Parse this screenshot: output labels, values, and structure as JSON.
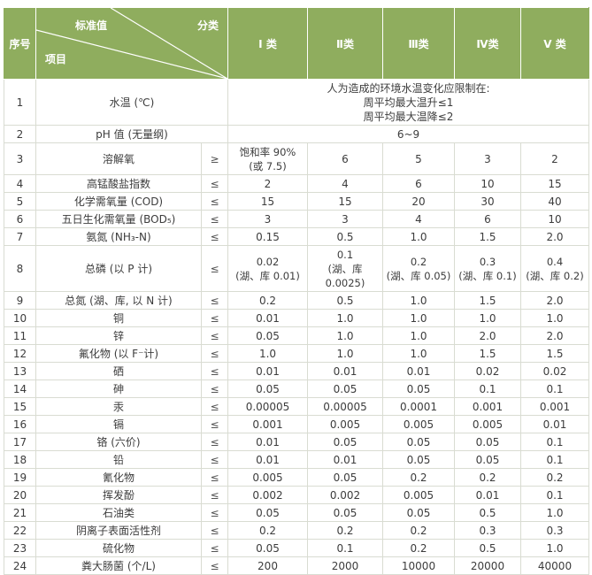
{
  "table": {
    "title_semantic": "地表水环境质量标准基本项目标准限值",
    "header": {
      "serial": "序号",
      "diagonal": {
        "top_left": "标准值",
        "top_right": "分类",
        "bottom_left": "项目"
      },
      "classes": [
        "I 类",
        "Ⅱ类",
        "Ⅲ类",
        "Ⅳ类",
        "V 类"
      ]
    },
    "rows": [
      {
        "no": "1",
        "item": "水温 (℃)",
        "span": "人为造成的环境水温变化应限制在:\n周平均最大温升≤1\n周平均最大温降≤2"
      },
      {
        "no": "2",
        "item": "pH 值 (无量纲)",
        "span": "6~9"
      },
      {
        "no": "3",
        "item": "溶解氧",
        "op": "≥",
        "values": [
          "饱和率 90%\n(或 7.5)",
          "6",
          "5",
          "3",
          "2"
        ]
      },
      {
        "no": "4",
        "item": "高锰酸盐指数",
        "op": "≤",
        "values": [
          "2",
          "4",
          "6",
          "10",
          "15"
        ]
      },
      {
        "no": "5",
        "item": "化学需氧量 (COD)",
        "op": "≤",
        "values": [
          "15",
          "15",
          "20",
          "30",
          "40"
        ]
      },
      {
        "no": "6",
        "item": "五日生化需氧量 (BOD₅)",
        "op": "≤",
        "values": [
          "3",
          "3",
          "4",
          "6",
          "10"
        ]
      },
      {
        "no": "7",
        "item": "氨氮 (NH₃-N)",
        "op": "≤",
        "values": [
          "0.15",
          "0.5",
          "1.0",
          "1.5",
          "2.0"
        ]
      },
      {
        "no": "8",
        "item": "总磷 (以 P 计)",
        "op": "≤",
        "values": [
          "0.02\n(湖、库 0.01)",
          "0.1\n(湖、库 0.0025)",
          "0.2\n(湖、库 0.05)",
          "0.3\n(湖、库 0.1)",
          "0.4\n(湖、库 0.2)"
        ]
      },
      {
        "no": "9",
        "item": "总氮 (湖、库, 以 N 计)",
        "op": "≤",
        "values": [
          "0.2",
          "0.5",
          "1.0",
          "1.5",
          "2.0"
        ]
      },
      {
        "no": "10",
        "item": "铜",
        "op": "≤",
        "values": [
          "0.01",
          "1.0",
          "1.0",
          "1.0",
          "1.0"
        ]
      },
      {
        "no": "11",
        "item": "锌",
        "op": "≤",
        "values": [
          "0.05",
          "1.0",
          "1.0",
          "2.0",
          "2.0"
        ]
      },
      {
        "no": "12",
        "item": "氟化物 (以 F⁻计)",
        "op": "≤",
        "values": [
          "1.0",
          "1.0",
          "1.0",
          "1.5",
          "1.5"
        ]
      },
      {
        "no": "13",
        "item": "硒",
        "op": "≤",
        "values": [
          "0.01",
          "0.01",
          "0.01",
          "0.02",
          "0.02"
        ]
      },
      {
        "no": "14",
        "item": "砷",
        "op": "≤",
        "values": [
          "0.05",
          "0.05",
          "0.05",
          "0.1",
          "0.1"
        ]
      },
      {
        "no": "15",
        "item": "汞",
        "op": "≤",
        "values": [
          "0.00005",
          "0.00005",
          "0.0001",
          "0.001",
          "0.001"
        ]
      },
      {
        "no": "16",
        "item": "镉",
        "op": "≤",
        "values": [
          "0.001",
          "0.005",
          "0.005",
          "0.005",
          "0.01"
        ]
      },
      {
        "no": "17",
        "item": "铬 (六价)",
        "op": "≤",
        "values": [
          "0.01",
          "0.05",
          "0.05",
          "0.05",
          "0.1"
        ]
      },
      {
        "no": "18",
        "item": "铅",
        "op": "≤",
        "values": [
          "0.01",
          "0.01",
          "0.05",
          "0.05",
          "0.1"
        ]
      },
      {
        "no": "19",
        "item": "氰化物",
        "op": "≤",
        "values": [
          "0.005",
          "0.05",
          "0.2",
          "0.2",
          "0.2"
        ]
      },
      {
        "no": "20",
        "item": "挥发酚",
        "op": "≤",
        "values": [
          "0.002",
          "0.002",
          "0.005",
          "0.01",
          "0.1"
        ]
      },
      {
        "no": "21",
        "item": "石油类",
        "op": "≤",
        "values": [
          "0.05",
          "0.05",
          "0.05",
          "0.5",
          "1.0"
        ]
      },
      {
        "no": "22",
        "item": "阴离子表面活性剂",
        "op": "≤",
        "values": [
          "0.2",
          "0.2",
          "0.2",
          "0.3",
          "0.3"
        ]
      },
      {
        "no": "23",
        "item": "硫化物",
        "op": "≤",
        "values": [
          "0.05",
          "0.1",
          "0.2",
          "0.5",
          "1.0"
        ]
      },
      {
        "no": "24",
        "item": "粪大肠菌 (个/L)",
        "op": "≤",
        "values": [
          "200",
          "2000",
          "10000",
          "20000",
          "40000"
        ]
      }
    ],
    "colors": {
      "header_bg": "#8fad5e",
      "header_text": "#ffffff",
      "body_text": "#3c3c3c",
      "inner_border": "#d9dcd2",
      "outer_border": "#c2cdb0"
    }
  }
}
